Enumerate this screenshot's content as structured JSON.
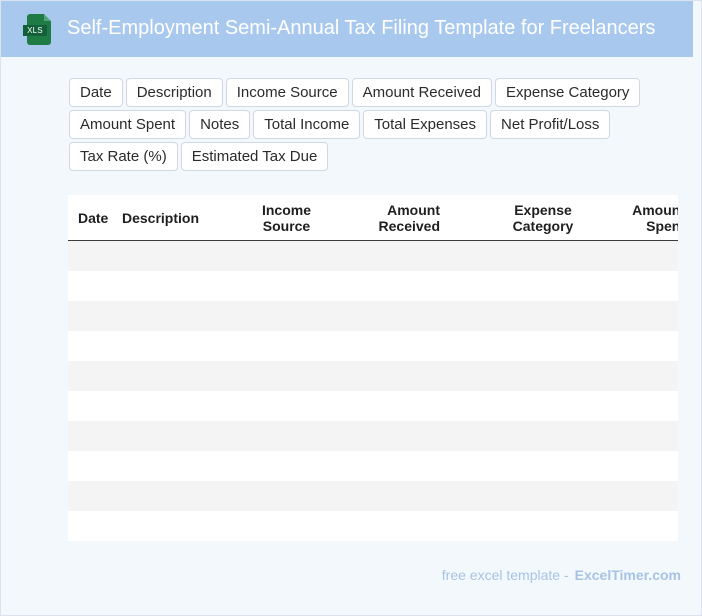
{
  "header": {
    "icon": "excel-file-icon",
    "icon_label": "XLS",
    "title": "Self-Employment Semi-Annual Tax Filing Template for Freelancers"
  },
  "chips": [
    [
      "Date",
      "Description",
      "Income Source",
      "Amount Received",
      "Expense Category"
    ],
    [
      "Amount Spent",
      "Notes",
      "Total Income",
      "Total Expenses",
      "Net Profit/Loss"
    ],
    [
      "Tax Rate (%)",
      "Estimated Tax Due"
    ]
  ],
  "table": {
    "headers": [
      [
        "Date"
      ],
      [
        "Description"
      ],
      [
        "Income",
        "Source"
      ],
      [
        "Amount",
        "Received"
      ],
      [
        "Expense",
        "Category"
      ],
      [
        "Amount",
        "Spent"
      ]
    ],
    "row_count": 10
  },
  "footer": {
    "prefix": "free excel template -",
    "brand": "ExcelTimer.com"
  },
  "colors": {
    "header_bg": "#a8c8ee",
    "icon_green": "#1e7b45",
    "footer_text": "#a7c3e4"
  }
}
